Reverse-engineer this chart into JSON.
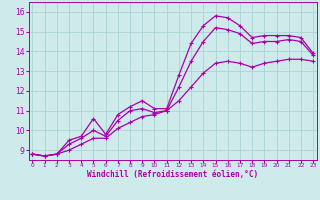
{
  "xlabel": "Windchill (Refroidissement éolien,°C)",
  "background_color": "#ceeaea",
  "line_color": "#aa00aa",
  "grid_color": "#aad4d4",
  "x_ticks": [
    0,
    1,
    2,
    3,
    4,
    5,
    6,
    7,
    8,
    9,
    10,
    11,
    12,
    13,
    14,
    15,
    16,
    17,
    18,
    19,
    20,
    21,
    22,
    23
  ],
  "y_ticks": [
    9,
    10,
    11,
    12,
    13,
    14,
    15,
    16
  ],
  "ylim": [
    8.5,
    16.5
  ],
  "xlim": [
    -0.3,
    23.3
  ],
  "curve1_x": [
    0,
    1,
    2,
    3,
    4,
    5,
    6,
    7,
    8,
    9,
    10,
    11,
    12,
    13,
    14,
    15,
    16,
    17,
    18,
    19,
    20,
    21,
    22,
    23
  ],
  "curve1_y": [
    8.8,
    8.7,
    8.8,
    9.5,
    9.7,
    10.6,
    9.8,
    10.8,
    11.2,
    11.5,
    11.1,
    11.1,
    12.8,
    14.4,
    15.3,
    15.8,
    15.7,
    15.3,
    14.7,
    14.8,
    14.8,
    14.8,
    14.7,
    13.9
  ],
  "curve2_x": [
    0,
    1,
    2,
    3,
    4,
    5,
    6,
    7,
    8,
    9,
    10,
    11,
    12,
    13,
    14,
    15,
    16,
    17,
    18,
    19,
    20,
    21,
    22,
    23
  ],
  "curve2_y": [
    8.8,
    8.7,
    8.8,
    9.3,
    9.6,
    10.0,
    9.7,
    10.5,
    11.0,
    11.1,
    10.9,
    11.0,
    12.2,
    13.5,
    14.5,
    15.2,
    15.1,
    14.9,
    14.4,
    14.5,
    14.5,
    14.6,
    14.5,
    13.8
  ],
  "curve3_x": [
    0,
    1,
    2,
    3,
    4,
    5,
    6,
    7,
    8,
    9,
    10,
    11,
    12,
    13,
    14,
    15,
    16,
    17,
    18,
    19,
    20,
    21,
    22,
    23
  ],
  "curve3_y": [
    8.8,
    8.7,
    8.8,
    9.0,
    9.3,
    9.6,
    9.6,
    10.1,
    10.4,
    10.7,
    10.8,
    11.0,
    11.5,
    12.2,
    12.9,
    13.4,
    13.5,
    13.4,
    13.2,
    13.4,
    13.5,
    13.6,
    13.6,
    13.5
  ]
}
